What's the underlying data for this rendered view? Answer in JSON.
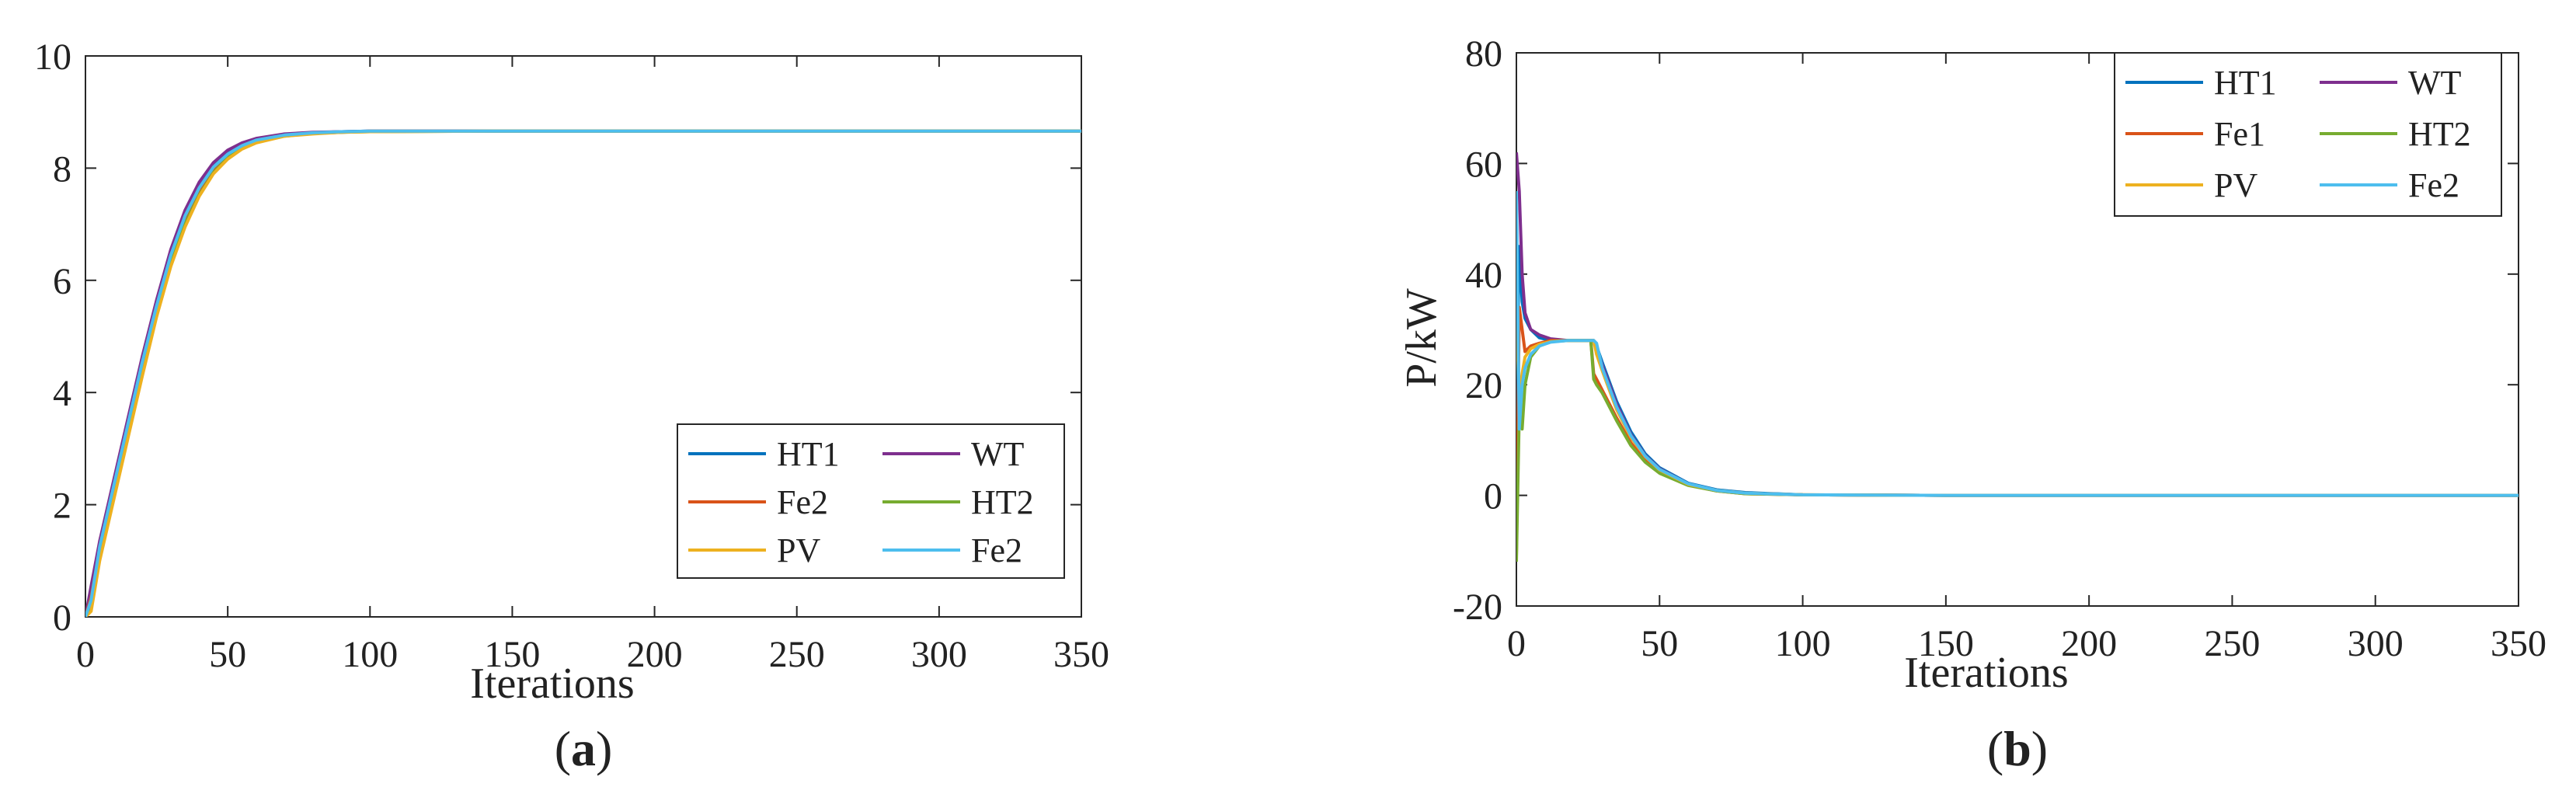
{
  "chart_data": [
    {
      "type": "line",
      "caption": "(a)",
      "caption_letter": "a",
      "title": "",
      "xlabel": "Iterations",
      "ylabel": "",
      "xlim": [
        0,
        350
      ],
      "ylim": [
        0,
        10
      ],
      "xticks": [
        0,
        50,
        100,
        150,
        200,
        250,
        300,
        350
      ],
      "yticks": [
        0,
        2,
        4,
        6,
        8,
        10
      ],
      "grid": false,
      "legend_position": "bottom-right",
      "legend_columns": 2,
      "series": [
        {
          "name": "HT1",
          "color": "#0072BD",
          "x": [
            0,
            2,
            5,
            10,
            15,
            20,
            25,
            30,
            35,
            40,
            45,
            50,
            55,
            60,
            70,
            80,
            90,
            100,
            150,
            200,
            250,
            300,
            350
          ],
          "values": [
            0,
            0.45,
            1.3,
            2.4,
            3.5,
            4.6,
            5.6,
            6.5,
            7.2,
            7.7,
            8.05,
            8.28,
            8.42,
            8.51,
            8.6,
            8.63,
            8.65,
            8.66,
            8.66,
            8.66,
            8.66,
            8.66,
            8.66
          ]
        },
        {
          "name": "WT",
          "color": "#7E2F8E",
          "x": [
            0,
            2,
            5,
            10,
            15,
            20,
            25,
            30,
            35,
            40,
            45,
            50,
            55,
            60,
            70,
            80,
            90,
            100,
            150,
            200,
            250,
            300,
            350
          ],
          "values": [
            0,
            0.55,
            1.35,
            2.45,
            3.55,
            4.65,
            5.65,
            6.55,
            7.25,
            7.75,
            8.1,
            8.32,
            8.45,
            8.53,
            8.61,
            8.64,
            8.65,
            8.66,
            8.66,
            8.66,
            8.66,
            8.66,
            8.66
          ]
        },
        {
          "name": "Fe2",
          "color": "#D95319",
          "x": [
            0,
            2,
            5,
            10,
            15,
            20,
            25,
            30,
            35,
            40,
            45,
            50,
            55,
            60,
            70,
            80,
            90,
            100,
            150,
            200,
            250,
            300,
            350
          ],
          "values": [
            0,
            0.35,
            1.2,
            2.3,
            3.4,
            4.5,
            5.5,
            6.4,
            7.1,
            7.6,
            7.98,
            8.22,
            8.38,
            8.48,
            8.58,
            8.62,
            8.64,
            8.66,
            8.66,
            8.66,
            8.66,
            8.66,
            8.66
          ]
        },
        {
          "name": "HT2",
          "color": "#77AC30",
          "x": [
            0,
            2,
            5,
            10,
            15,
            20,
            25,
            30,
            35,
            40,
            45,
            50,
            55,
            60,
            70,
            80,
            90,
            100,
            150,
            200,
            250,
            300,
            350
          ],
          "values": [
            0,
            0.2,
            1.1,
            2.2,
            3.3,
            4.4,
            5.4,
            6.3,
            7.0,
            7.52,
            7.92,
            8.18,
            8.35,
            8.46,
            8.57,
            8.62,
            8.64,
            8.65,
            8.66,
            8.66,
            8.66,
            8.66,
            8.66
          ]
        },
        {
          "name": "PV",
          "color": "#EDB120",
          "x": [
            0,
            2,
            5,
            10,
            15,
            20,
            25,
            30,
            35,
            40,
            45,
            50,
            55,
            60,
            70,
            80,
            90,
            100,
            150,
            200,
            250,
            300,
            350
          ],
          "values": [
            0,
            0.1,
            1.0,
            2.1,
            3.2,
            4.3,
            5.35,
            6.25,
            6.95,
            7.5,
            7.9,
            8.16,
            8.34,
            8.45,
            8.57,
            8.61,
            8.64,
            8.65,
            8.66,
            8.66,
            8.66,
            8.66,
            8.66
          ]
        },
        {
          "name": "Fe2",
          "color": "#4DBEEE",
          "x": [
            0,
            2,
            5,
            10,
            15,
            20,
            25,
            30,
            35,
            40,
            45,
            50,
            55,
            60,
            70,
            80,
            90,
            100,
            150,
            200,
            250,
            300,
            350
          ],
          "values": [
            0,
            0.3,
            1.25,
            2.35,
            3.45,
            4.55,
            5.55,
            6.45,
            7.15,
            7.65,
            8.02,
            8.25,
            8.4,
            8.5,
            8.59,
            8.63,
            8.65,
            8.66,
            8.66,
            8.66,
            8.66,
            8.66,
            8.66
          ]
        }
      ]
    },
    {
      "type": "line",
      "caption": "(b)",
      "caption_letter": "b",
      "title": "",
      "xlabel": "Iterations",
      "ylabel": "P/kW",
      "xlim": [
        0,
        350
      ],
      "ylim": [
        -20,
        80
      ],
      "xticks": [
        0,
        50,
        100,
        150,
        200,
        250,
        300,
        350
      ],
      "yticks": [
        -20,
        0,
        20,
        40,
        60,
        80
      ],
      "grid": false,
      "legend_position": "top-right",
      "legend_columns": 2,
      "series": [
        {
          "name": "HT1",
          "color": "#0072BD",
          "x": [
            0,
            1,
            2,
            3,
            5,
            8,
            12,
            18,
            26,
            27,
            28,
            30,
            35,
            40,
            45,
            50,
            60,
            70,
            80,
            100,
            150,
            200,
            250,
            300,
            350
          ],
          "values": [
            14,
            45,
            35,
            32,
            30,
            28.5,
            28,
            28,
            28,
            28,
            27,
            24,
            17,
            11.5,
            7.5,
            5,
            2.2,
            1.0,
            0.5,
            0.1,
            0,
            0,
            0,
            0,
            0
          ]
        },
        {
          "name": "WT",
          "color": "#7E2F8E",
          "x": [
            0,
            1,
            2,
            3,
            5,
            8,
            12,
            18,
            26,
            27,
            28,
            30,
            35,
            40,
            45,
            50,
            60,
            70,
            80,
            100,
            150,
            200,
            250,
            300,
            350
          ],
          "values": [
            62,
            55,
            40,
            33,
            30,
            29,
            28.3,
            28,
            28,
            28,
            26.5,
            23.5,
            16.5,
            11,
            7.2,
            4.8,
            2.1,
            0.9,
            0.4,
            0.1,
            0,
            0,
            0,
            0,
            0
          ]
        },
        {
          "name": "Fe1",
          "color": "#D95319",
          "x": [
            0,
            1,
            2,
            3,
            5,
            8,
            12,
            18,
            26,
            27,
            28,
            30,
            35,
            40,
            45,
            50,
            60,
            70,
            80,
            100,
            150,
            200,
            250,
            300,
            350
          ],
          "values": [
            -11,
            34,
            30,
            26,
            27,
            27.5,
            28,
            28,
            28,
            22,
            21,
            19,
            14,
            9.5,
            6.3,
            4.2,
            1.9,
            0.8,
            0.3,
            0.1,
            0,
            0,
            0,
            0,
            0
          ]
        },
        {
          "name": "HT2",
          "color": "#77AC30",
          "x": [
            0,
            1,
            2,
            3,
            5,
            8,
            12,
            18,
            26,
            27,
            28,
            30,
            35,
            40,
            45,
            50,
            60,
            70,
            80,
            100,
            150,
            200,
            250,
            300,
            350
          ],
          "values": [
            -12,
            15,
            12,
            20,
            25,
            27,
            27.8,
            28,
            28,
            21,
            20,
            18.5,
            13.5,
            9,
            6,
            4,
            1.8,
            0.8,
            0.3,
            0.1,
            0,
            0,
            0,
            0,
            0
          ]
        },
        {
          "name": "PV",
          "color": "#EDB120",
          "x": [
            0,
            1,
            2,
            3,
            5,
            8,
            12,
            18,
            26,
            27,
            28,
            30,
            35,
            40,
            45,
            50,
            60,
            70,
            80,
            100,
            150,
            200,
            250,
            300,
            350
          ],
          "values": [
            32,
            18,
            22,
            25,
            26.5,
            27.3,
            27.8,
            28,
            28,
            28,
            25.5,
            22.5,
            15.5,
            10.5,
            7,
            4.6,
            2.0,
            0.9,
            0.4,
            0.1,
            0,
            0,
            0,
            0,
            0
          ]
        },
        {
          "name": "Fe2",
          "color": "#4DBEEE",
          "x": [
            0,
            1,
            2,
            3,
            5,
            8,
            12,
            18,
            26,
            27,
            28,
            30,
            35,
            40,
            45,
            50,
            60,
            70,
            80,
            100,
            150,
            200,
            250,
            300,
            350
          ],
          "values": [
            55,
            12,
            20,
            23,
            25.5,
            27,
            27.7,
            28,
            28,
            28,
            27.5,
            23,
            16,
            10.8,
            7.1,
            4.7,
            2.1,
            0.9,
            0.4,
            0.1,
            0,
            0,
            0,
            0,
            0
          ]
        }
      ]
    }
  ]
}
